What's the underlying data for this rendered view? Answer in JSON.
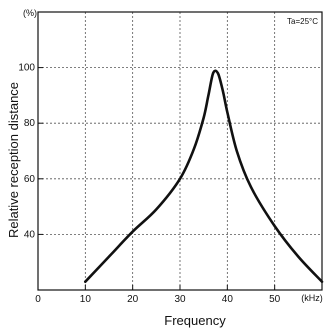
{
  "chart_data": {
    "type": "line",
    "title": "",
    "xlabel": "Frequency",
    "ylabel": "Relative reception distance",
    "x_unit": "(kHz)",
    "y_unit": "(%)",
    "annotation": "Ta=25°C",
    "xlim": [
      0,
      60
    ],
    "ylim": [
      20,
      120
    ],
    "x_ticks": [
      0,
      10,
      20,
      30,
      40,
      50
    ],
    "y_ticks": [
      40,
      60,
      80,
      100
    ],
    "grid": true,
    "series": [
      {
        "name": "",
        "x": [
          10,
          15,
          20,
          25,
          30,
          33,
          35,
          36,
          37,
          38,
          39,
          40,
          42,
          45,
          50,
          55,
          60
        ],
        "y": [
          23,
          32,
          41,
          49,
          60,
          71,
          82,
          90,
          98,
          98,
          92,
          84,
          70,
          57,
          43,
          32,
          23
        ]
      }
    ]
  }
}
